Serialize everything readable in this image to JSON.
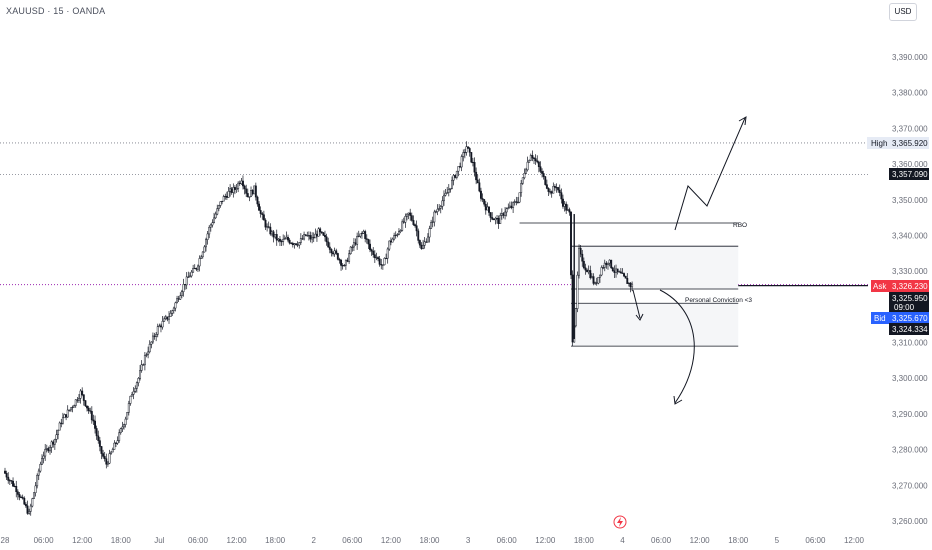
{
  "header": {
    "symbol_title": "XAUUSD · 15 · OANDA",
    "currency_button": "USD"
  },
  "price_tags": {
    "high_label": "High",
    "high_value": "3,365.920",
    "level_value": "3,357.090",
    "ask_label": "Ask",
    "ask_value": "3,326.230",
    "last_value": "3,325.950",
    "countdown": "09:00",
    "bid_label": "Bid",
    "bid_value": "3,325.670",
    "low_value": "3,324.334"
  },
  "annotations": {
    "rbo": "RBO",
    "conviction": "Personal Conviction <3"
  },
  "colors": {
    "up": "#131722",
    "down": "#131722",
    "ask": "#f23645",
    "bid": "#2962ff",
    "dark_tag": "#131722",
    "high_tag": "#e6ebf5",
    "dotted": "#787b86",
    "purple": "#9c27b0"
  },
  "chart_data": {
    "type": "candlestick",
    "y_ticks": [
      "3,390.000",
      "3,380.000",
      "3,370.000",
      "3,360.000",
      "3,350.000",
      "3,340.000",
      "3,330.000",
      "3,310.000",
      "3,300.000",
      "3,290.000",
      "3,280.000",
      "3,270.000",
      "3,260.000"
    ],
    "y_tick_values": [
      3390,
      3380,
      3370,
      3360,
      3350,
      3340,
      3330,
      3310,
      3300,
      3290,
      3280,
      3270,
      3260
    ],
    "x_ticks": [
      {
        "label": "28",
        "value": 0
      },
      {
        "label": "06:00",
        "value": 6
      },
      {
        "label": "12:00",
        "value": 12
      },
      {
        "label": "18:00",
        "value": 18
      },
      {
        "label": "Jul",
        "value": 24
      },
      {
        "label": "06:00",
        "value": 30
      },
      {
        "label": "12:00",
        "value": 36
      },
      {
        "label": "18:00",
        "value": 42
      },
      {
        "label": "2",
        "value": 48
      },
      {
        "label": "06:00",
        "value": 54
      },
      {
        "label": "12:00",
        "value": 60
      },
      {
        "label": "18:00",
        "value": 66
      },
      {
        "label": "3",
        "value": 72
      },
      {
        "label": "06:00",
        "value": 78
      },
      {
        "label": "12:00",
        "value": 84
      },
      {
        "label": "18:00",
        "value": 90
      },
      {
        "label": "4",
        "value": 96
      },
      {
        "label": "06:00",
        "value": 102
      },
      {
        "label": "12:00",
        "value": 108
      },
      {
        "label": "18:00",
        "value": 114
      },
      {
        "label": "5",
        "value": 120
      },
      {
        "label": "06:00",
        "value": 126
      },
      {
        "label": "12:00",
        "value": 132
      }
    ],
    "x_unit": "hours since Jun 28 00:00",
    "ylim": [
      3258,
      3396
    ],
    "price_path": [
      [
        0,
        3274
      ],
      [
        2,
        3269
      ],
      [
        4,
        3262
      ],
      [
        5,
        3270
      ],
      [
        6,
        3278
      ],
      [
        8,
        3283
      ],
      [
        9,
        3288
      ],
      [
        11,
        3293
      ],
      [
        12,
        3296
      ],
      [
        13,
        3292
      ],
      [
        14,
        3288
      ],
      [
        15,
        3280
      ],
      [
        16,
        3276
      ],
      [
        17,
        3280
      ],
      [
        18,
        3284
      ],
      [
        19,
        3289
      ],
      [
        20,
        3296
      ],
      [
        21,
        3300
      ],
      [
        22,
        3306
      ],
      [
        23,
        3310
      ],
      [
        24,
        3314
      ],
      [
        25,
        3316
      ],
      [
        26,
        3318
      ],
      [
        27,
        3322
      ],
      [
        28,
        3326
      ],
      [
        29,
        3329
      ],
      [
        30,
        3331
      ],
      [
        31,
        3336
      ],
      [
        32,
        3342
      ],
      [
        33,
        3346
      ],
      [
        34,
        3350
      ],
      [
        35,
        3352
      ],
      [
        36,
        3353
      ],
      [
        37,
        3356
      ],
      [
        38,
        3351
      ],
      [
        39,
        3353
      ],
      [
        40,
        3346
      ],
      [
        41,
        3342
      ],
      [
        42,
        3340
      ],
      [
        43,
        3338
      ],
      [
        44,
        3339
      ],
      [
        45,
        3338
      ],
      [
        46,
        3338
      ],
      [
        47,
        3340
      ],
      [
        48,
        3339
      ],
      [
        49,
        3341
      ],
      [
        50,
        3339
      ],
      [
        51,
        3336
      ],
      [
        52,
        3334
      ],
      [
        53,
        3331
      ],
      [
        54,
        3336
      ],
      [
        55,
        3339
      ],
      [
        56,
        3341
      ],
      [
        57,
        3336
      ],
      [
        58,
        3334
      ],
      [
        59,
        3331
      ],
      [
        60,
        3338
      ],
      [
        61,
        3340
      ],
      [
        62,
        3343
      ],
      [
        63,
        3346
      ],
      [
        64,
        3343
      ],
      [
        65,
        3336
      ],
      [
        66,
        3340
      ],
      [
        67,
        3346
      ],
      [
        68,
        3349
      ],
      [
        69,
        3352
      ],
      [
        70,
        3356
      ],
      [
        71,
        3360
      ],
      [
        72,
        3365
      ],
      [
        73,
        3360
      ],
      [
        74,
        3352
      ],
      [
        75,
        3348
      ],
      [
        76,
        3345
      ],
      [
        77,
        3344
      ],
      [
        78,
        3347
      ],
      [
        79,
        3348
      ],
      [
        80,
        3350
      ],
      [
        81,
        3358
      ],
      [
        82,
        3363
      ],
      [
        83,
        3360
      ],
      [
        84,
        3356
      ],
      [
        85,
        3352
      ],
      [
        86,
        3354
      ],
      [
        87,
        3349
      ],
      [
        88,
        3346
      ],
      [
        88.5,
        3311
      ],
      [
        89,
        3320
      ],
      [
        89.5,
        3336
      ],
      [
        90,
        3332
      ],
      [
        91,
        3330
      ],
      [
        92,
        3326
      ],
      [
        93,
        3331
      ],
      [
        94,
        3333
      ],
      [
        95,
        3330
      ],
      [
        96,
        3329
      ],
      [
        97,
        3327
      ],
      [
        97.5,
        3326
      ]
    ],
    "levels": [
      {
        "price": 3365.92,
        "style": "dotted"
      },
      {
        "price": 3357.09,
        "style": "dotted"
      },
      {
        "price": 3326.23,
        "style": "dotted-purple"
      },
      {
        "price": 3325.95,
        "style": "solid"
      }
    ],
    "zones": [
      {
        "x_start": 88,
        "x_end": 114,
        "top": 3343.5,
        "bottom": 3343.5,
        "kind": "line"
      },
      {
        "x_start": 88,
        "x_end": 114,
        "top": 3337,
        "bottom": 3325,
        "kind": "box"
      },
      {
        "x_start": 88,
        "x_end": 114,
        "top": 3321,
        "bottom": 3309,
        "kind": "box"
      }
    ]
  }
}
